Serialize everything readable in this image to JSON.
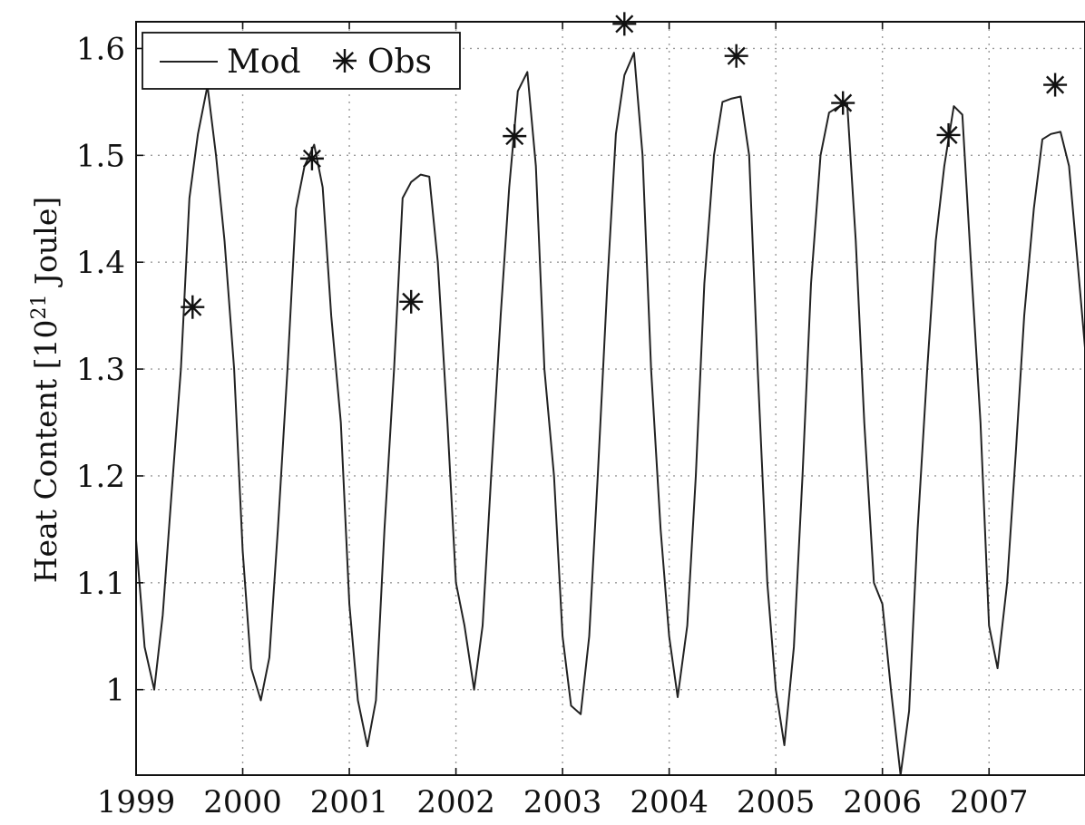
{
  "chart_data": {
    "type": "line",
    "title": "",
    "xlabel": "",
    "ylabel_main": "Heat Content [10",
    "ylabel_sup": "21",
    "ylabel_tail": " Joule]",
    "xlim": [
      1999,
      2007.9
    ],
    "ylim": [
      0.92,
      1.625
    ],
    "xticks": [
      1999,
      2000,
      2001,
      2002,
      2003,
      2004,
      2005,
      2006,
      2007
    ],
    "xtick_labels": [
      "1999",
      "2000",
      "2001",
      "2002",
      "2003",
      "2004",
      "2005",
      "2006",
      "2007"
    ],
    "yticks": [
      1.0,
      1.1,
      1.2,
      1.3,
      1.4,
      1.5,
      1.6
    ],
    "ytick_labels": [
      "1",
      "1.1",
      "1.2",
      "1.3",
      "1.4",
      "1.5",
      "1.6"
    ],
    "grid": true,
    "legend": {
      "position": "top-left",
      "entries": [
        {
          "label": "Mod",
          "marker": "line"
        },
        {
          "label": "Obs",
          "marker": "asterisk"
        }
      ]
    },
    "series": [
      {
        "name": "Mod",
        "style": "line",
        "x": [
          1999.0,
          1999.08,
          1999.17,
          1999.25,
          1999.33,
          1999.42,
          1999.5,
          1999.58,
          1999.67,
          1999.75,
          1999.83,
          1999.92,
          2000.0,
          2000.08,
          2000.17,
          2000.25,
          2000.33,
          2000.42,
          2000.5,
          2000.58,
          2000.67,
          2000.75,
          2000.83,
          2000.92,
          2001.0,
          2001.08,
          2001.17,
          2001.25,
          2001.33,
          2001.42,
          2001.5,
          2001.58,
          2001.67,
          2001.75,
          2001.83,
          2001.92,
          2002.0,
          2002.08,
          2002.17,
          2002.25,
          2002.33,
          2002.42,
          2002.5,
          2002.58,
          2002.67,
          2002.75,
          2002.83,
          2002.92,
          2003.0,
          2003.08,
          2003.17,
          2003.25,
          2003.33,
          2003.42,
          2003.5,
          2003.58,
          2003.67,
          2003.75,
          2003.83,
          2003.92,
          2004.0,
          2004.08,
          2004.17,
          2004.25,
          2004.33,
          2004.42,
          2004.5,
          2004.58,
          2004.67,
          2004.75,
          2004.83,
          2004.92,
          2005.0,
          2005.08,
          2005.17,
          2005.25,
          2005.33,
          2005.42,
          2005.5,
          2005.58,
          2005.67,
          2005.75,
          2005.83,
          2005.92,
          2006.0,
          2006.08,
          2006.17,
          2006.25,
          2006.33,
          2006.42,
          2006.5,
          2006.58,
          2006.67,
          2006.75,
          2006.83,
          2006.92,
          2007.0,
          2007.08,
          2007.17,
          2007.25,
          2007.33,
          2007.42,
          2007.5,
          2007.58,
          2007.67,
          2007.75,
          2007.83,
          2007.9
        ],
        "y": [
          1.14,
          1.04,
          1.0,
          1.07,
          1.18,
          1.3,
          1.46,
          1.52,
          1.565,
          1.5,
          1.42,
          1.3,
          1.13,
          1.02,
          0.99,
          1.03,
          1.15,
          1.3,
          1.45,
          1.49,
          1.51,
          1.47,
          1.35,
          1.25,
          1.08,
          0.99,
          0.947,
          0.99,
          1.15,
          1.3,
          1.46,
          1.475,
          1.482,
          1.48,
          1.4,
          1.25,
          1.1,
          1.06,
          1.0,
          1.06,
          1.2,
          1.35,
          1.47,
          1.56,
          1.578,
          1.49,
          1.3,
          1.2,
          1.05,
          0.985,
          0.977,
          1.05,
          1.2,
          1.38,
          1.52,
          1.575,
          1.596,
          1.5,
          1.3,
          1.15,
          1.05,
          0.993,
          1.06,
          1.2,
          1.38,
          1.5,
          1.55,
          1.553,
          1.555,
          1.5,
          1.3,
          1.1,
          1.0,
          0.948,
          1.04,
          1.2,
          1.38,
          1.5,
          1.54,
          1.545,
          1.548,
          1.42,
          1.25,
          1.1,
          1.08,
          1.0,
          0.92,
          0.98,
          1.15,
          1.3,
          1.42,
          1.49,
          1.546,
          1.538,
          1.4,
          1.25,
          1.06,
          1.02,
          1.1,
          1.22,
          1.35,
          1.45,
          1.515,
          1.52,
          1.522,
          1.49,
          1.4,
          1.32
        ]
      },
      {
        "name": "Obs",
        "style": "asterisk",
        "x": [
          1999.53,
          2000.65,
          2001.58,
          2002.55,
          2003.58,
          2004.63,
          2005.63,
          2006.62,
          2007.62
        ],
        "y": [
          1.358,
          1.497,
          1.363,
          1.518,
          1.623,
          1.593,
          1.549,
          1.519,
          1.566
        ]
      }
    ]
  }
}
